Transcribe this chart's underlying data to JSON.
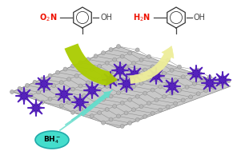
{
  "bg_color": "#ffffff",
  "graphene_facecolor": "#c8c8c8",
  "graphene_edgecolor": "#888888",
  "atom_facecolor": "#b8b8b8",
  "atom_edgecolor": "#888888",
  "nano_color": "#5522bb",
  "nano_edge": "#330099",
  "bh4_color": "#44ddcc",
  "bh4_edge": "#22aaaa",
  "arrow_green": "#aacc00",
  "arrow_yellow": "#eeee99",
  "arrow_teal": "#66ddcc",
  "nitro_color": "#ee1100",
  "amino_color": "#ee1100",
  "bond_color": "#444444",
  "figsize": [
    2.96,
    1.89
  ],
  "dpi": 100
}
